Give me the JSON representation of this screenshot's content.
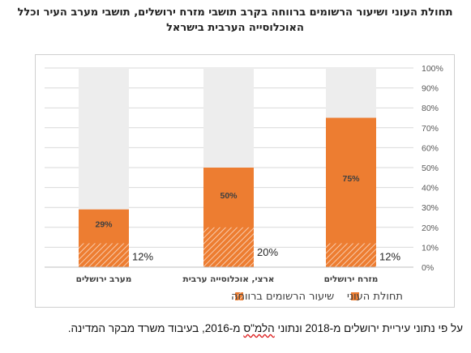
{
  "chart_data": {
    "type": "bar",
    "title": "תחולת העוני ושיעור הרשומים ברווחה בקרב תושבי מזרח ירושלים, תושבי מערב העיר וכלל האוכלוסייה הערבית בישראל",
    "categories": [
      "מערב ירושלים",
      "ארצי, אוכלוסייה ערבית",
      "מזרח ירושלים"
    ],
    "series": [
      {
        "name": "תחולת העוני",
        "values": [
          29,
          50,
          75
        ],
        "labels": [
          "29%",
          "50%",
          "75%"
        ],
        "color": "#ED7D31"
      },
      {
        "name": "שיעור הרשומים ברווחה",
        "values": [
          12,
          20,
          12
        ],
        "labels": [
          "12%",
          "20%",
          "12%"
        ],
        "color": "#F4B183"
      }
    ],
    "ylim": [
      0,
      100
    ],
    "yticks": [
      "0%",
      "10%",
      "20%",
      "30%",
      "40%",
      "50%",
      "60%",
      "70%",
      "80%",
      "90%",
      "100%"
    ],
    "background_color": "#EDEDED",
    "grid": true,
    "legend_position": "bottom"
  },
  "footnote": {
    "before": "על פי נתוני עיריית ירושלים מ-2018 ונתוני ",
    "squiggle": "הלמ\"ס",
    "after": " מ-2016, בעיבוד משרד מבקר המדינה."
  }
}
